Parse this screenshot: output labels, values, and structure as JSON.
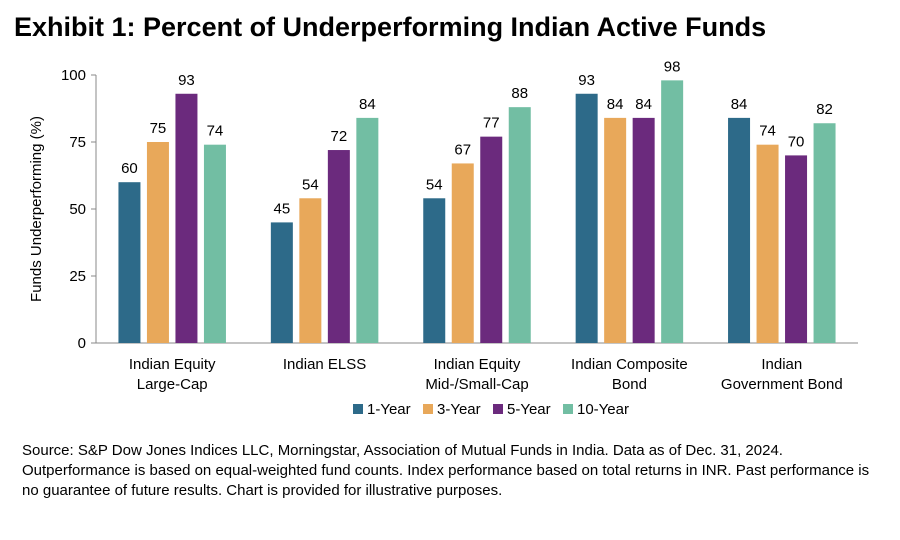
{
  "title": "Exhibit 1: Percent of Underperforming Indian Active Funds",
  "footnote": "Source: S&P Dow Jones Indices LLC, Morningstar, Association of Mutual Funds in India.  Data as of Dec. 31, 2024.  Outperformance is based on equal-weighted fund counts.  Index performance based on total returns in INR.  Past performance is no guarantee of future results.  Chart is provided for illustrative purposes.",
  "chart_data": {
    "type": "bar",
    "title": "Exhibit 1: Percent of Underperforming Indian Active Funds",
    "ylabel": "Funds Underperforming (%)",
    "xlabel": "",
    "ylim": [
      0,
      100
    ],
    "yticks": [
      0,
      25,
      50,
      75,
      100
    ],
    "grid": false,
    "legend_position": "bottom",
    "categories": [
      [
        "Indian Equity",
        "Large-Cap"
      ],
      [
        "Indian ELSS"
      ],
      [
        "Indian Equity",
        "Mid-/Small-Cap"
      ],
      [
        "Indian Composite",
        "Bond"
      ],
      [
        "Indian",
        "Government Bond"
      ]
    ],
    "series": [
      {
        "name": "1-Year",
        "color": "#2d6a89",
        "values": [
          60,
          45,
          54,
          93,
          84
        ]
      },
      {
        "name": "3-Year",
        "color": "#e8a85a",
        "values": [
          75,
          54,
          67,
          84,
          74
        ]
      },
      {
        "name": "5-Year",
        "color": "#6b2a7d",
        "values": [
          93,
          72,
          77,
          84,
          70
        ]
      },
      {
        "name": "10-Year",
        "color": "#72bea3",
        "values": [
          74,
          84,
          88,
          98,
          82
        ]
      }
    ]
  }
}
